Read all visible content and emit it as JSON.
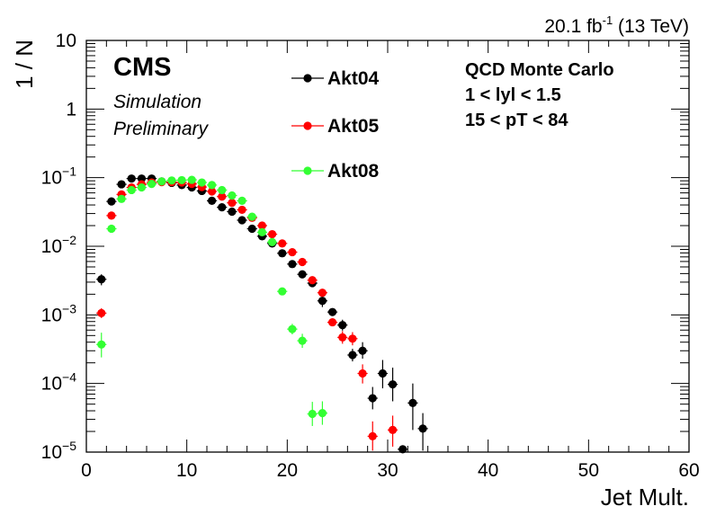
{
  "header": {
    "lumi_value": "20.1 fb",
    "lumi_exp": "-1",
    "lumi_energy": " (13 TeV)"
  },
  "labels": {
    "cms": "CMS",
    "simulation": "Simulation",
    "preliminary": "Preliminary",
    "info_line1": "QCD Monte Carlo",
    "info_line2": "1 < lyl < 1.5",
    "info_line3": "15 < pT < 84"
  },
  "chart_data": {
    "type": "scatter",
    "xlabel": "Jet Mult.",
    "ylabel": "1 / N",
    "xlim": [
      0,
      60
    ],
    "ylim": [
      1e-05,
      10
    ],
    "yscale": "log",
    "grid": false,
    "legend_position": "top-center",
    "x_ticks": [
      0,
      10,
      20,
      30,
      40,
      50,
      60
    ],
    "y_ticks": [
      {
        "value": 10,
        "base": "10",
        "exp": ""
      },
      {
        "value": 1,
        "base": "1",
        "exp": ""
      },
      {
        "value": 0.1,
        "base": "10",
        "exp": "−1"
      },
      {
        "value": 0.01,
        "base": "10",
        "exp": "−2"
      },
      {
        "value": 0.001,
        "base": "10",
        "exp": "−3"
      },
      {
        "value": 0.0001,
        "base": "10",
        "exp": "−4"
      },
      {
        "value": 1e-05,
        "base": "10",
        "exp": "−5"
      }
    ],
    "series": [
      {
        "name": "Akt04",
        "color": "#000000",
        "points": [
          {
            "x": 1.5,
            "y": 0.0033,
            "lo": 0.0027,
            "hi": 0.0039
          },
          {
            "x": 2.5,
            "y": 0.045
          },
          {
            "x": 3.5,
            "y": 0.08
          },
          {
            "x": 4.5,
            "y": 0.097
          },
          {
            "x": 5.5,
            "y": 0.097
          },
          {
            "x": 6.5,
            "y": 0.097
          },
          {
            "x": 7.5,
            "y": 0.088
          },
          {
            "x": 8.5,
            "y": 0.084
          },
          {
            "x": 9.5,
            "y": 0.078
          },
          {
            "x": 10.5,
            "y": 0.072
          },
          {
            "x": 11.5,
            "y": 0.064
          },
          {
            "x": 12.5,
            "y": 0.046
          },
          {
            "x": 13.5,
            "y": 0.037
          },
          {
            "x": 14.5,
            "y": 0.032
          },
          {
            "x": 15.5,
            "y": 0.024
          },
          {
            "x": 16.5,
            "y": 0.018
          },
          {
            "x": 17.5,
            "y": 0.014
          },
          {
            "x": 18.5,
            "y": 0.011
          },
          {
            "x": 19.5,
            "y": 0.0079
          },
          {
            "x": 20.5,
            "y": 0.0055
          },
          {
            "x": 21.5,
            "y": 0.0039
          },
          {
            "x": 22.5,
            "y": 0.0029
          },
          {
            "x": 23.5,
            "y": 0.0016,
            "lo": 0.0013,
            "hi": 0.002
          },
          {
            "x": 24.5,
            "y": 0.0011
          },
          {
            "x": 25.5,
            "y": 0.00071,
            "lo": 0.00059,
            "hi": 0.00085
          },
          {
            "x": 26.5,
            "y": 0.00026,
            "lo": 0.00021,
            "hi": 0.00032
          },
          {
            "x": 27.5,
            "y": 0.0003,
            "lo": 0.00023,
            "hi": 0.0004
          },
          {
            "x": 28.5,
            "y": 6.1e-05,
            "lo": 4.2e-05,
            "hi": 8.9e-05
          },
          {
            "x": 29.5,
            "y": 0.00014,
            "lo": 8.5e-05,
            "hi": 0.00022
          },
          {
            "x": 30.5,
            "y": 9.7e-05,
            "lo": 5.5e-05,
            "hi": 0.00017
          },
          {
            "x": 31.5,
            "y": 1.1e-05,
            "lo": 1.05e-05,
            "hi": 1.25e-05
          },
          {
            "x": 32.5,
            "y": 5.2e-05,
            "lo": 2.1e-05,
            "hi": 0.0001
          },
          {
            "x": 33.5,
            "y": 2.2e-05,
            "lo": 1.05e-05,
            "hi": 3.7e-05
          }
        ]
      },
      {
        "name": "Akt05",
        "color": "#ff0000",
        "points": [
          {
            "x": 1.5,
            "y": 0.00106,
            "lo": 0.0009,
            "hi": 0.00125
          },
          {
            "x": 2.5,
            "y": 0.028
          },
          {
            "x": 3.5,
            "y": 0.057
          },
          {
            "x": 4.5,
            "y": 0.072
          },
          {
            "x": 5.5,
            "y": 0.08
          },
          {
            "x": 6.5,
            "y": 0.085
          },
          {
            "x": 7.5,
            "y": 0.086
          },
          {
            "x": 8.5,
            "y": 0.086
          },
          {
            "x": 9.5,
            "y": 0.085
          },
          {
            "x": 10.5,
            "y": 0.081
          },
          {
            "x": 11.5,
            "y": 0.073
          },
          {
            "x": 12.5,
            "y": 0.063
          },
          {
            "x": 13.5,
            "y": 0.053
          },
          {
            "x": 14.5,
            "y": 0.043
          },
          {
            "x": 15.5,
            "y": 0.034
          },
          {
            "x": 16.5,
            "y": 0.026
          },
          {
            "x": 17.5,
            "y": 0.02
          },
          {
            "x": 18.5,
            "y": 0.015
          },
          {
            "x": 19.5,
            "y": 0.011
          },
          {
            "x": 20.5,
            "y": 0.0082
          },
          {
            "x": 21.5,
            "y": 0.0059
          },
          {
            "x": 22.5,
            "y": 0.0032
          },
          {
            "x": 23.5,
            "y": 0.0021
          },
          {
            "x": 24.5,
            "y": 0.00078
          },
          {
            "x": 25.5,
            "y": 0.00047,
            "lo": 0.00038,
            "hi": 0.00058
          },
          {
            "x": 26.5,
            "y": 0.00045,
            "lo": 0.00036,
            "hi": 0.00056
          },
          {
            "x": 27.5,
            "y": 0.00014,
            "lo": 0.0001,
            "hi": 0.00019
          },
          {
            "x": 28.5,
            "y": 1.7e-05,
            "lo": 1.05e-05,
            "hi": 2.8e-05
          },
          {
            "x": 30.5,
            "y": 2.1e-05,
            "lo": 1.2e-05,
            "hi": 3.4e-05
          }
        ]
      },
      {
        "name": "Akt08",
        "color": "#33ff33",
        "points": [
          {
            "x": 1.5,
            "y": 0.00037,
            "lo": 0.00024,
            "hi": 0.00055
          },
          {
            "x": 2.5,
            "y": 0.018
          },
          {
            "x": 3.5,
            "y": 0.049
          },
          {
            "x": 4.5,
            "y": 0.066
          },
          {
            "x": 5.5,
            "y": 0.072
          },
          {
            "x": 6.5,
            "y": 0.081
          },
          {
            "x": 7.5,
            "y": 0.088
          },
          {
            "x": 8.5,
            "y": 0.091
          },
          {
            "x": 9.5,
            "y": 0.092
          },
          {
            "x": 10.5,
            "y": 0.093
          },
          {
            "x": 11.5,
            "y": 0.085
          },
          {
            "x": 12.5,
            "y": 0.078
          },
          {
            "x": 13.5,
            "y": 0.066
          },
          {
            "x": 14.5,
            "y": 0.055
          },
          {
            "x": 15.5,
            "y": 0.046
          },
          {
            "x": 16.5,
            "y": 0.027
          },
          {
            "x": 17.5,
            "y": 0.016
          },
          {
            "x": 18.5,
            "y": 0.0115
          },
          {
            "x": 19.5,
            "y": 0.0022
          },
          {
            "x": 20.5,
            "y": 0.00062,
            "lo": 0.00052,
            "hi": 0.00074
          },
          {
            "x": 21.5,
            "y": 0.00042,
            "lo": 0.00033,
            "hi": 0.00053
          },
          {
            "x": 22.5,
            "y": 3.6e-05,
            "lo": 2.4e-05,
            "hi": 5.4e-05
          },
          {
            "x": 23.5,
            "y": 3.7e-05,
            "lo": 2.5e-05,
            "hi": 5.5e-05
          }
        ]
      }
    ]
  }
}
